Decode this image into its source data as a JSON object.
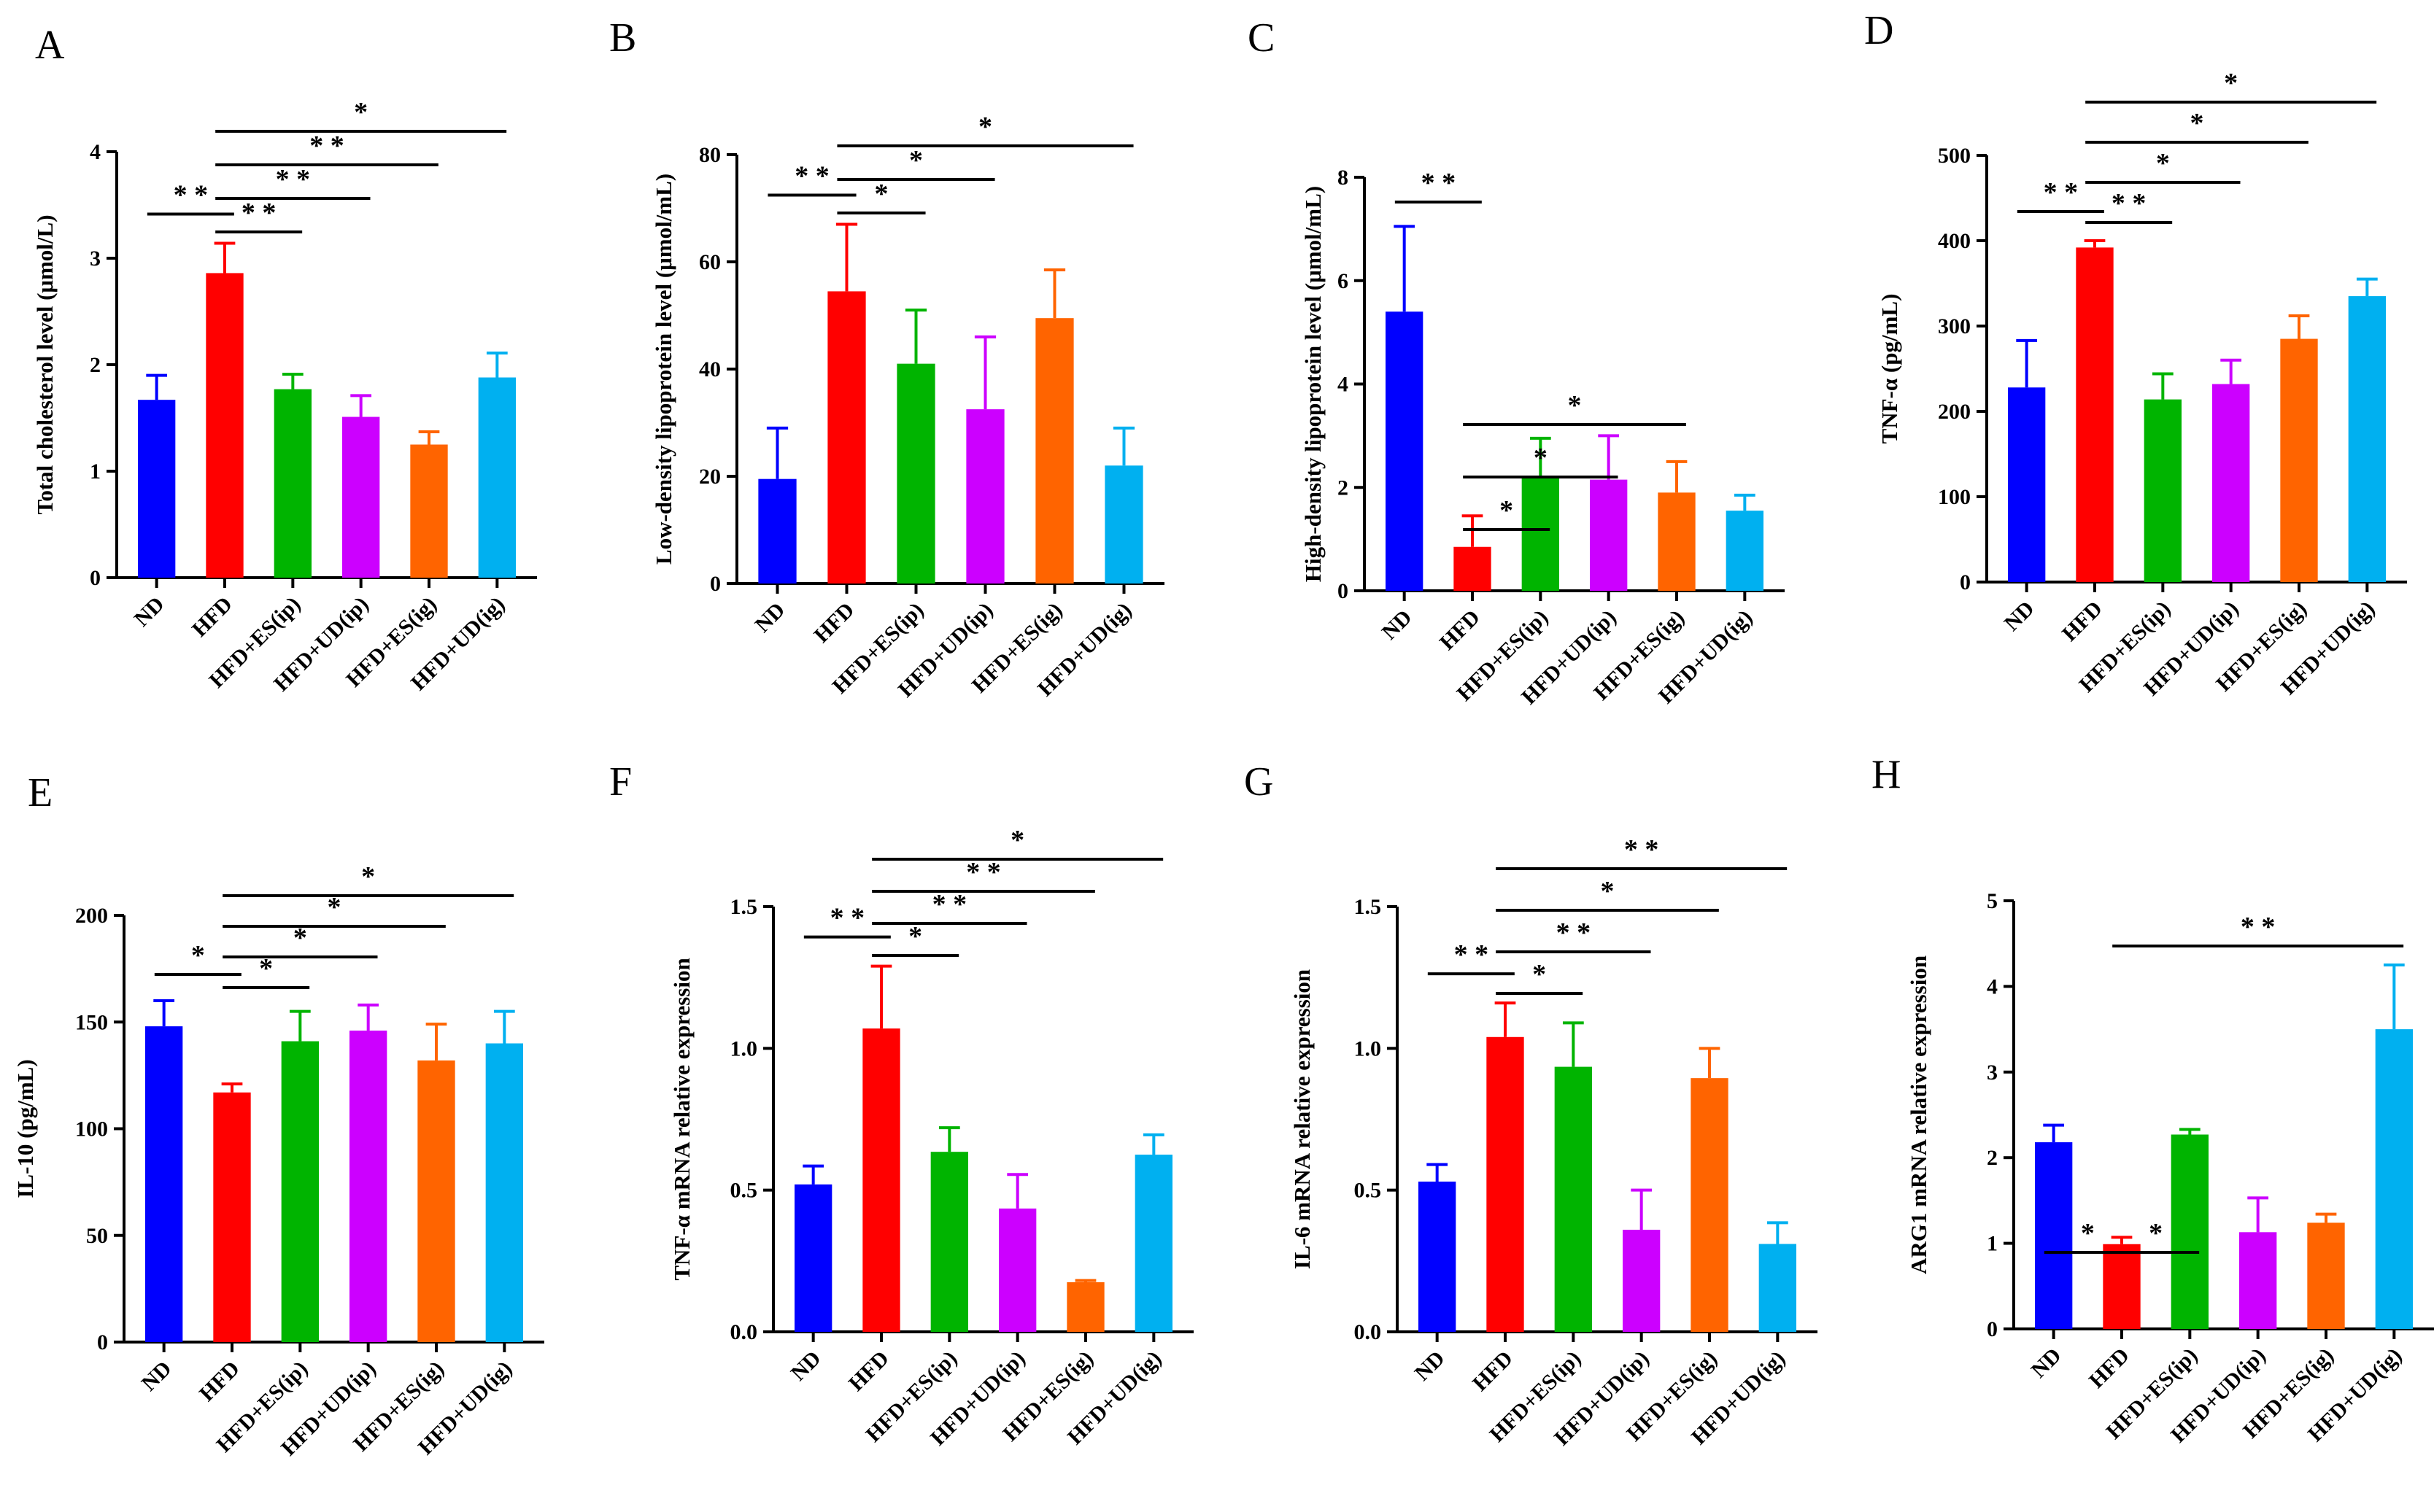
{
  "figure": {
    "colors": [
      "#0000ff",
      "#ff0000",
      "#00b400",
      "#cc00ff",
      "#ff6400",
      "#00b0f0"
    ],
    "categories": [
      "ND",
      "HFD",
      "HFD+ES(ip)",
      "HFD+UD(ip)",
      "HFD+ES(ig)",
      "HFD+UD(ig)"
    ]
  },
  "chart_data": [
    {
      "panel": "A",
      "type": "bar",
      "ylabel": "Total cholesterol level (μmol/L)",
      "categories": [
        "ND",
        "HFD",
        "HFD+ES(ip)",
        "HFD+UD(ip)",
        "HFD+ES(ig)",
        "HFD+UD(ig)"
      ],
      "values": [
        1.67,
        2.86,
        1.77,
        1.51,
        1.25,
        1.88
      ],
      "errors": [
        0.23,
        0.28,
        0.14,
        0.2,
        0.12,
        0.23
      ],
      "ylim": [
        0,
        4
      ],
      "yticks": [
        0,
        1,
        2,
        3,
        4
      ],
      "ytick_labels": [
        "0",
        "1",
        "2",
        "3",
        "4"
      ],
      "significance": [
        {
          "from": 0,
          "to": 1,
          "label": "* *"
        },
        {
          "from": 1,
          "to": 2,
          "label": "* *"
        },
        {
          "from": 1,
          "to": 3,
          "label": "* *"
        },
        {
          "from": 1,
          "to": 4,
          "label": "* *"
        },
        {
          "from": 1,
          "to": 5,
          "label": "*"
        }
      ]
    },
    {
      "panel": "B",
      "type": "bar",
      "ylabel": "Low-density lipoprotein level (μmol/mL)",
      "categories": [
        "ND",
        "HFD",
        "HFD+ES(ip)",
        "HFD+UD(ip)",
        "HFD+ES(ig)",
        "HFD+UD(ig)"
      ],
      "values": [
        19.5,
        54.5,
        41,
        32.5,
        49.5,
        22
      ],
      "errors": [
        9.5,
        12.5,
        10,
        13.5,
        9,
        7
      ],
      "ylim": [
        0,
        80
      ],
      "yticks": [
        0,
        20,
        40,
        60,
        80
      ],
      "ytick_labels": [
        "0",
        "20",
        "40",
        "60",
        "80"
      ],
      "significance": [
        {
          "from": 0,
          "to": 1,
          "label": "* *"
        },
        {
          "from": 1,
          "to": 2,
          "label": "*"
        },
        {
          "from": 1,
          "to": 3,
          "label": "*"
        },
        {
          "from": 1,
          "to": 5,
          "label": "*"
        }
      ]
    },
    {
      "panel": "C",
      "type": "bar",
      "ylabel": "High-density lipoprotein level (μmol/mL)",
      "categories": [
        "ND",
        "HFD",
        "HFD+ES(ip)",
        "HFD+UD(ip)",
        "HFD+ES(ig)",
        "HFD+UD(ig)"
      ],
      "values": [
        5.4,
        0.85,
        2.2,
        2.15,
        1.9,
        1.55
      ],
      "errors": [
        1.65,
        0.6,
        0.75,
        0.85,
        0.6,
        0.3
      ],
      "ylim": [
        0,
        8
      ],
      "yticks": [
        0,
        2,
        4,
        6,
        8
      ],
      "ytick_labels": [
        "0",
        "2",
        "4",
        "6",
        "8"
      ],
      "significance": [
        {
          "from": 0,
          "to": 1,
          "label": "* *"
        },
        {
          "from": 1,
          "to": 2,
          "label": "*"
        },
        {
          "from": 1,
          "to": 3,
          "label": "*"
        },
        {
          "from": 1,
          "to": 4,
          "label": "*"
        }
      ]
    },
    {
      "panel": "D",
      "type": "bar",
      "ylabel": "TNF-α (pg/mL)",
      "categories": [
        "ND",
        "HFD",
        "HFD+ES(ip)",
        "HFD+UD(ip)",
        "HFD+ES(ig)",
        "HFD+UD(ig)"
      ],
      "values": [
        228,
        392,
        214,
        232,
        285,
        335
      ],
      "errors": [
        55,
        8,
        30,
        28,
        27,
        20
      ],
      "ylim": [
        0,
        500
      ],
      "yticks": [
        0,
        100,
        200,
        300,
        400,
        500
      ],
      "ytick_labels": [
        "0",
        "100",
        "200",
        "300",
        "400",
        "500"
      ],
      "significance": [
        {
          "from": 0,
          "to": 1,
          "label": "* *"
        },
        {
          "from": 1,
          "to": 2,
          "label": "* *"
        },
        {
          "from": 1,
          "to": 3,
          "label": "*"
        },
        {
          "from": 1,
          "to": 4,
          "label": "*"
        },
        {
          "from": 1,
          "to": 5,
          "label": "*"
        }
      ]
    },
    {
      "panel": "E",
      "type": "bar",
      "ylabel": "IL-10 (pg/mL)",
      "categories": [
        "ND",
        "HFD",
        "HFD+ES(ip)",
        "HFD+UD(ip)",
        "HFD+ES(ig)",
        "HFD+UD(ig)"
      ],
      "values": [
        148,
        117,
        141,
        146,
        132,
        140
      ],
      "errors": [
        12,
        4,
        14,
        12,
        17,
        15
      ],
      "ylim": [
        0,
        200
      ],
      "yticks": [
        0,
        50,
        100,
        150,
        200
      ],
      "ytick_labels": [
        "0",
        "50",
        "100",
        "150",
        "200"
      ],
      "significance": [
        {
          "from": 0,
          "to": 1,
          "label": "*"
        },
        {
          "from": 1,
          "to": 2,
          "label": "*"
        },
        {
          "from": 1,
          "to": 3,
          "label": "*"
        },
        {
          "from": 1,
          "to": 4,
          "label": "*"
        },
        {
          "from": 1,
          "to": 5,
          "label": "*"
        }
      ]
    },
    {
      "panel": "F",
      "type": "bar",
      "ylabel": "TNF-α mRNA relative expression",
      "categories": [
        "ND",
        "HFD",
        "HFD+ES(ip)",
        "HFD+UD(ip)",
        "HFD+ES(ig)",
        "HFD+UD(ig)"
      ],
      "values": [
        0.52,
        1.07,
        0.635,
        0.435,
        0.175,
        0.625
      ],
      "errors": [
        0.065,
        0.22,
        0.085,
        0.12,
        0.006,
        0.07
      ],
      "ylim": [
        0,
        1.5
      ],
      "yticks": [
        0,
        0.5,
        1.0,
        1.5
      ],
      "ytick_labels": [
        "0.0",
        "0.5",
        "1.0",
        "1.5"
      ],
      "significance": [
        {
          "from": 0,
          "to": 1,
          "label": "* *"
        },
        {
          "from": 1,
          "to": 2,
          "label": "*"
        },
        {
          "from": 1,
          "to": 3,
          "label": "* *"
        },
        {
          "from": 1,
          "to": 4,
          "label": "* *"
        },
        {
          "from": 1,
          "to": 5,
          "label": "*"
        }
      ]
    },
    {
      "panel": "G",
      "type": "bar",
      "ylabel": "IL-6 mRNA relative expression",
      "categories": [
        "ND",
        "HFD",
        "HFD+ES(ip)",
        "HFD+UD(ip)",
        "HFD+ES(ig)",
        "HFD+UD(ig)"
      ],
      "values": [
        0.53,
        1.04,
        0.935,
        0.36,
        0.895,
        0.31
      ],
      "errors": [
        0.06,
        0.12,
        0.155,
        0.14,
        0.105,
        0.075
      ],
      "ylim": [
        0,
        1.5
      ],
      "yticks": [
        0,
        0.5,
        1.0,
        1.5
      ],
      "ytick_labels": [
        "0.0",
        "0.5",
        "1.0",
        "1.5"
      ],
      "significance": [
        {
          "from": 0,
          "to": 1,
          "label": "* *"
        },
        {
          "from": 1,
          "to": 2,
          "label": "*"
        },
        {
          "from": 1,
          "to": 3,
          "label": "* *"
        },
        {
          "from": 1,
          "to": 4,
          "label": "*"
        },
        {
          "from": 1,
          "to": 5,
          "label": "* *"
        }
      ]
    },
    {
      "panel": "H",
      "type": "bar",
      "ylabel": "ARG1 mRNA relative expression",
      "categories": [
        "ND",
        "HFD",
        "HFD+ES(ip)",
        "HFD+UD(ip)",
        "HFD+ES(ig)",
        "HFD+UD(ig)"
      ],
      "values": [
        2.18,
        0.99,
        2.27,
        1.13,
        1.24,
        3.5
      ],
      "errors": [
        0.2,
        0.08,
        0.06,
        0.4,
        0.1,
        0.75
      ],
      "ylim": [
        0,
        5
      ],
      "yticks": [
        0,
        1,
        2,
        3,
        4,
        5
      ],
      "ytick_labels": [
        "0",
        "1",
        "2",
        "3",
        "4",
        "5"
      ],
      "significance": [
        {
          "from": 0,
          "to": 1,
          "label": "*"
        },
        {
          "from": 1,
          "to": 2,
          "label": "*"
        },
        {
          "from": 1,
          "to": 5,
          "label": "* *"
        }
      ]
    }
  ]
}
